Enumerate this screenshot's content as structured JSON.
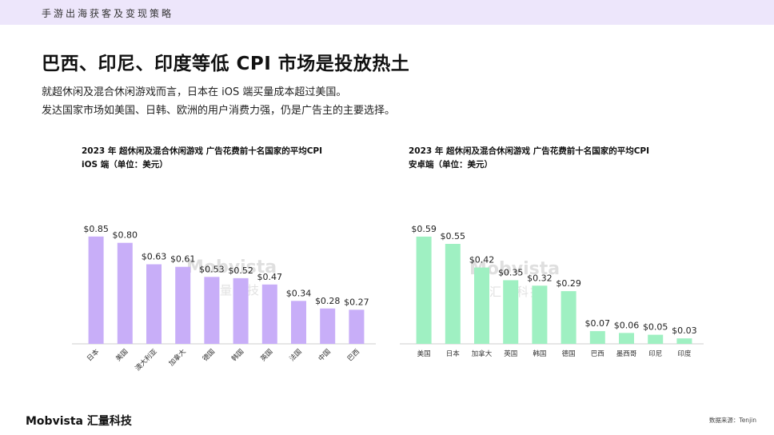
{
  "header": {
    "bar_text": "手游出海获客及变现策略"
  },
  "title": "巴西、印尼、印度等低 CPI 市场是投放热土",
  "subtitle_lines": [
    "就超休闲及混合休闲游戏而言，日本在 iOS 端买量成本超过美国。",
    "发达国家市场如美国、日韩、欧洲的用户消费力强，仍是广告主的主要选择。"
  ],
  "watermark": {
    "brand": "Mobvista",
    "cn": "汇量科技"
  },
  "footer": {
    "logo": "Mobvista 汇量科技",
    "source": "数据来源：Tenjin"
  },
  "colors": {
    "ios_bar": "#c8aef8",
    "android_bar": "#9ff0c2",
    "axis": "#cccccc",
    "header_bg": "#ede6fb"
  },
  "chart_data": [
    {
      "type": "bar",
      "title_line1": "2023 年 超休闲及混合休闲游戏 广告花费前十名国家的平均CPI",
      "title_line2": "iOS 端（单位：美元）",
      "categories": [
        "日本",
        "美国",
        "澳大利亚",
        "加拿大",
        "德国",
        "韩国",
        "英国",
        "法国",
        "中国",
        "巴西"
      ],
      "values": [
        0.85,
        0.8,
        0.63,
        0.61,
        0.53,
        0.52,
        0.47,
        0.34,
        0.28,
        0.27
      ],
      "labels": [
        "$0.85",
        "$0.80",
        "$0.63",
        "$0.61",
        "$0.53",
        "$0.52",
        "$0.47",
        "$0.34",
        "$0.28",
        "$0.27"
      ],
      "ylim": [
        0,
        0.95
      ],
      "rotate_labels": true,
      "color": "#c8aef8"
    },
    {
      "type": "bar",
      "title_line1": "2023 年 超休闲及混合休闲游戏 广告花费前十名国家的平均CPI",
      "title_line2": "安卓端（单位：美元）",
      "categories": [
        "美国",
        "日本",
        "加拿大",
        "英国",
        "韩国",
        "德国",
        "巴西",
        "墨西哥",
        "印尼",
        "印度"
      ],
      "values": [
        0.59,
        0.55,
        0.42,
        0.35,
        0.32,
        0.29,
        0.07,
        0.06,
        0.05,
        0.03
      ],
      "labels": [
        "$0.59",
        "$0.55",
        "$0.42",
        "$0.35",
        "$0.32",
        "$0.29",
        "$0.07",
        "$0.06",
        "$0.05",
        "$0.03"
      ],
      "ylim": [
        0,
        0.66
      ],
      "rotate_labels": false,
      "color": "#9ff0c2"
    }
  ]
}
